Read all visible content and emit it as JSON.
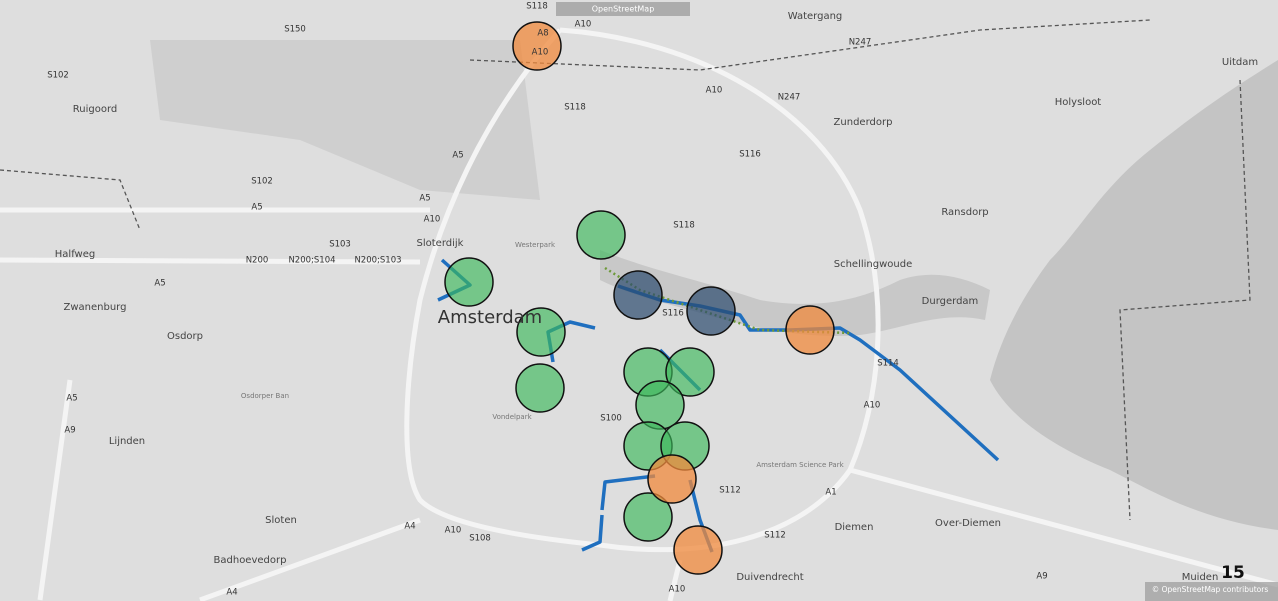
{
  "header": {
    "source": "OpenStreetMap"
  },
  "places": [
    "Amsterdam",
    "Halfweg",
    "Zwanenburg",
    "Osdorp",
    "Ruigoord",
    "Lijnden",
    "Sloten",
    "Badhoevedorp",
    "Diemen",
    "Duivendrecht",
    "Over-Diemen",
    "Ransdorp",
    "Durgerdam",
    "Schellingwoude",
    "Zunderdorp",
    "Holysloot",
    "Uitdam",
    "Watergang",
    "Muiden",
    "Amsterdam Science Park",
    "Osdorper Ban",
    "Westerpark",
    "Vondelpark",
    "Sloterdijk"
  ],
  "roads": [
    "A10",
    "A8",
    "S118",
    "S150",
    "S102",
    "A5",
    "A5",
    "A5",
    "A10",
    "A10",
    "N247",
    "N247",
    "S116",
    "S118",
    "S116",
    "S114",
    "A10",
    "S100",
    "S112",
    "S112",
    "A1",
    "A4",
    "A10",
    "S108",
    "A10",
    "A9",
    "A9",
    "A5",
    "A5",
    "N200",
    "N200;S104",
    "N200;S103",
    "S103",
    "S102",
    "A4",
    "S118",
    "A10"
  ],
  "footer": {
    "attribution": "© OpenStreetMap contributors",
    "page_number": 15
  }
}
